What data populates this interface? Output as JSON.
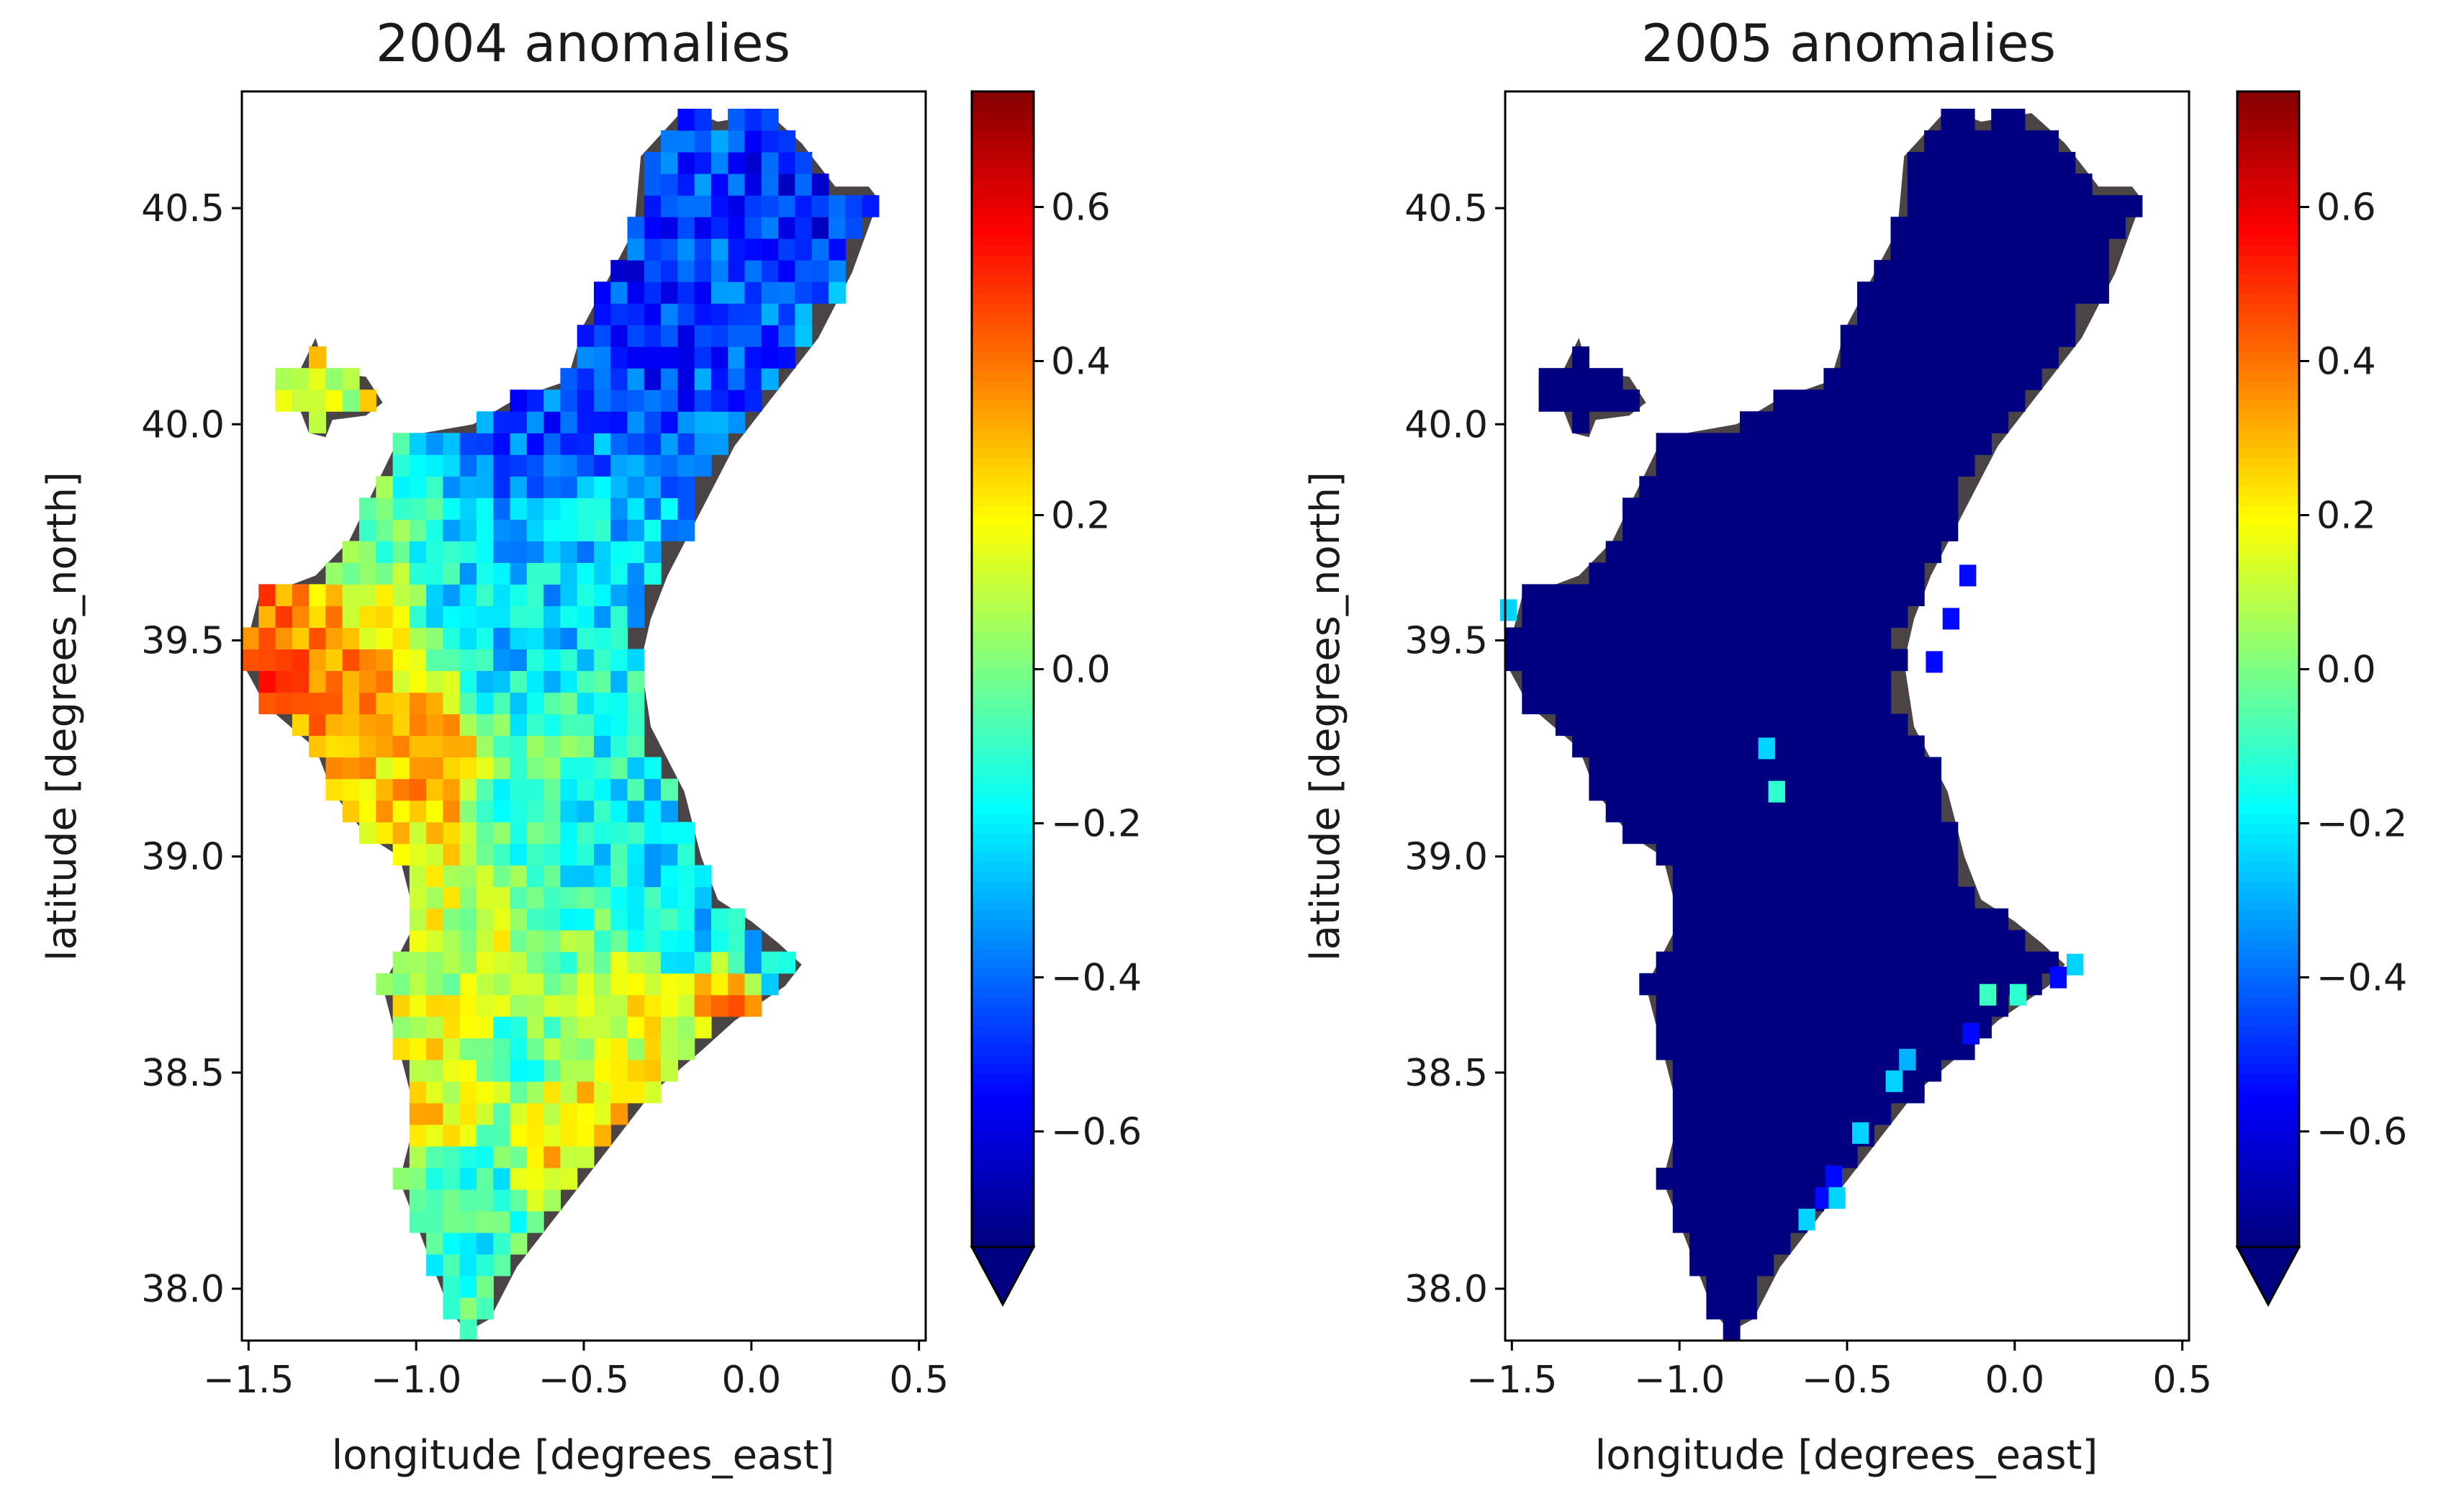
{
  "chart_data": [
    {
      "type": "heatmap",
      "title": "2004 anomalies",
      "xlabel": "longitude [degrees_east]",
      "ylabel": "latitude [degrees_north]",
      "xlim": [
        -1.52,
        0.52
      ],
      "ylim": [
        37.88,
        40.77
      ],
      "xticks": [
        -1.5,
        -1.0,
        -0.5,
        0.0,
        0.5
      ],
      "xtick_labels": [
        "−1.5",
        "−1.0",
        "−0.5",
        "0.0",
        "0.5"
      ],
      "yticks": [
        38.0,
        38.5,
        39.0,
        39.5,
        40.0,
        40.5
      ],
      "ytick_labels": [
        "38.0",
        "38.5",
        "39.0",
        "39.5",
        "40.0",
        "40.5"
      ],
      "colorbar": {
        "colormap": "jet",
        "vmin": -0.75,
        "vmax": 0.75,
        "extend": "min",
        "ticks": [
          -0.6,
          -0.4,
          -0.2,
          0.0,
          0.2,
          0.4,
          0.6
        ],
        "tick_labels": [
          "−0.6",
          "−0.4",
          "−0.2",
          "0.0",
          "0.2",
          "0.4",
          "0.6"
        ]
      },
      "region_outline": [
        [
          -1.47,
          39.6
        ],
        [
          -1.3,
          39.65
        ],
        [
          -1.2,
          39.73
        ],
        [
          -1.05,
          39.97
        ],
        [
          -0.83,
          40.0
        ],
        [
          -0.7,
          40.06
        ],
        [
          -0.55,
          40.1
        ],
        [
          -0.5,
          40.23
        ],
        [
          -0.35,
          40.45
        ],
        [
          -0.33,
          40.62
        ],
        [
          -0.2,
          40.73
        ],
        [
          -0.1,
          40.7
        ],
        [
          0.05,
          40.72
        ],
        [
          0.15,
          40.65
        ],
        [
          0.25,
          40.55
        ],
        [
          0.35,
          40.55
        ],
        [
          0.38,
          40.52
        ],
        [
          0.3,
          40.35
        ],
        [
          0.2,
          40.2
        ],
        [
          0.05,
          40.05
        ],
        [
          -0.05,
          39.95
        ],
        [
          -0.15,
          39.8
        ],
        [
          -0.25,
          39.65
        ],
        [
          -0.3,
          39.55
        ],
        [
          -0.33,
          39.45
        ],
        [
          -0.3,
          39.3
        ],
        [
          -0.2,
          39.15
        ],
        [
          -0.15,
          39.0
        ],
        [
          -0.1,
          38.9
        ],
        [
          0.0,
          38.85
        ],
        [
          0.08,
          38.8
        ],
        [
          0.15,
          38.75
        ],
        [
          0.1,
          38.7
        ],
        [
          -0.05,
          38.62
        ],
        [
          -0.15,
          38.55
        ],
        [
          -0.3,
          38.45
        ],
        [
          -0.4,
          38.35
        ],
        [
          -0.5,
          38.25
        ],
        [
          -0.6,
          38.15
        ],
        [
          -0.7,
          38.05
        ],
        [
          -0.78,
          37.93
        ],
        [
          -0.85,
          37.9
        ],
        [
          -0.9,
          37.95
        ],
        [
          -0.95,
          38.05
        ],
        [
          -1.0,
          38.15
        ],
        [
          -1.05,
          38.25
        ],
        [
          -1.0,
          38.4
        ],
        [
          -1.05,
          38.55
        ],
        [
          -1.1,
          38.7
        ],
        [
          -1.0,
          38.85
        ],
        [
          -1.05,
          39.0
        ],
        [
          -1.15,
          39.05
        ],
        [
          -1.25,
          39.15
        ],
        [
          -1.3,
          39.25
        ],
        [
          -1.45,
          39.35
        ],
        [
          -1.52,
          39.45
        ]
      ],
      "exclave_outline": [
        [
          -1.42,
          40.1
        ],
        [
          -1.35,
          40.12
        ],
        [
          -1.3,
          40.2
        ],
        [
          -1.27,
          40.12
        ],
        [
          -1.15,
          40.11
        ],
        [
          -1.1,
          40.05
        ],
        [
          -1.15,
          40.02
        ],
        [
          -1.25,
          40.01
        ],
        [
          -1.27,
          39.97
        ],
        [
          -1.32,
          39.98
        ],
        [
          -1.35,
          40.04
        ],
        [
          -1.42,
          40.05
        ]
      ],
      "field": {
        "description": "coarse pixel anomaly field",
        "anchors": [
          {
            "lon": -1.45,
            "lat": 39.45,
            "value": 0.4
          },
          {
            "lon": -1.2,
            "lat": 39.35,
            "value": 0.32
          },
          {
            "lon": -1.0,
            "lat": 39.25,
            "value": 0.28
          },
          {
            "lon": -1.2,
            "lat": 39.0,
            "value": 0.2
          },
          {
            "lon": -1.25,
            "lat": 40.06,
            "value": 0.15
          },
          {
            "lon": -1.05,
            "lat": 39.85,
            "value": -0.05
          },
          {
            "lon": -0.85,
            "lat": 39.95,
            "value": -0.35
          },
          {
            "lon": -0.7,
            "lat": 40.0,
            "value": -0.45
          },
          {
            "lon": -0.4,
            "lat": 40.3,
            "value": -0.5
          },
          {
            "lon": -0.15,
            "lat": 40.55,
            "value": -0.45
          },
          {
            "lon": 0.15,
            "lat": 40.55,
            "value": -0.55
          },
          {
            "lon": 0.25,
            "lat": 40.3,
            "value": -0.4
          },
          {
            "lon": -0.55,
            "lat": 39.6,
            "value": -0.25
          },
          {
            "lon": -0.75,
            "lat": 39.55,
            "value": -0.25
          },
          {
            "lon": -0.6,
            "lat": 39.2,
            "value": -0.1
          },
          {
            "lon": -0.4,
            "lat": 39.1,
            "value": -0.2
          },
          {
            "lon": -0.2,
            "lat": 38.85,
            "value": -0.22
          },
          {
            "lon": 0.05,
            "lat": 38.78,
            "value": -0.25
          },
          {
            "lon": -0.85,
            "lat": 38.7,
            "value": 0.1
          },
          {
            "lon": -0.95,
            "lat": 38.45,
            "value": 0.2
          },
          {
            "lon": -0.7,
            "lat": 38.55,
            "value": -0.05
          },
          {
            "lon": -0.3,
            "lat": 38.6,
            "value": 0.15
          },
          {
            "lon": -0.05,
            "lat": 38.65,
            "value": 0.35
          },
          {
            "lon": -0.55,
            "lat": 38.35,
            "value": 0.25
          },
          {
            "lon": -0.85,
            "lat": 38.2,
            "value": -0.15
          },
          {
            "lon": -0.85,
            "lat": 37.98,
            "value": -0.1
          }
        ],
        "variance": 0.15
      }
    },
    {
      "type": "heatmap",
      "title": "2005 anomalies",
      "xlabel": "longitude [degrees_east]",
      "ylabel": "latitude [degrees_north]",
      "xlim": [
        -1.52,
        0.52
      ],
      "ylim": [
        37.88,
        40.77
      ],
      "xticks": [
        -1.5,
        -1.0,
        -0.5,
        0.0,
        0.5
      ],
      "xtick_labels": [
        "−1.5",
        "−1.0",
        "−0.5",
        "0.0",
        "0.5"
      ],
      "yticks": [
        38.0,
        38.5,
        39.0,
        39.5,
        40.0,
        40.5
      ],
      "ytick_labels": [
        "38.0",
        "38.5",
        "39.0",
        "39.5",
        "40.0",
        "40.5"
      ],
      "colorbar": {
        "colormap": "jet",
        "vmin": -0.75,
        "vmax": 0.75,
        "extend": "min",
        "ticks": [
          -0.6,
          -0.4,
          -0.2,
          0.0,
          0.2,
          0.4,
          0.6
        ],
        "tick_labels": [
          "−0.6",
          "−0.4",
          "−0.2",
          "0.0",
          "0.2",
          "0.4",
          "0.6"
        ]
      },
      "field": {
        "description": "nearly the whole region below the colour range (under -0.75)",
        "base_value": -0.9,
        "cells": [
          {
            "lon": -1.51,
            "lat": 39.57,
            "value": -0.25
          },
          {
            "lon": -0.74,
            "lat": 39.25,
            "value": -0.25
          },
          {
            "lon": -0.71,
            "lat": 39.15,
            "value": -0.12
          },
          {
            "lon": -0.08,
            "lat": 38.68,
            "value": -0.1
          },
          {
            "lon": 0.01,
            "lat": 38.68,
            "value": -0.12
          },
          {
            "lon": 0.13,
            "lat": 38.72,
            "value": -0.55
          },
          {
            "lon": 0.18,
            "lat": 38.75,
            "value": -0.25
          },
          {
            "lon": -0.13,
            "lat": 38.59,
            "value": -0.55
          },
          {
            "lon": -0.32,
            "lat": 38.53,
            "value": -0.3
          },
          {
            "lon": -0.36,
            "lat": 38.48,
            "value": -0.25
          },
          {
            "lon": -0.46,
            "lat": 38.36,
            "value": -0.25
          },
          {
            "lon": -0.54,
            "lat": 38.26,
            "value": -0.55
          },
          {
            "lon": -0.57,
            "lat": 38.21,
            "value": -0.55
          },
          {
            "lon": -0.53,
            "lat": 38.21,
            "value": -0.25
          },
          {
            "lon": -0.62,
            "lat": 38.16,
            "value": -0.25
          },
          {
            "lon": -0.14,
            "lat": 39.65,
            "value": -0.55
          },
          {
            "lon": -0.19,
            "lat": 39.55,
            "value": -0.55
          },
          {
            "lon": -0.24,
            "lat": 39.45,
            "value": -0.55
          }
        ]
      }
    }
  ]
}
